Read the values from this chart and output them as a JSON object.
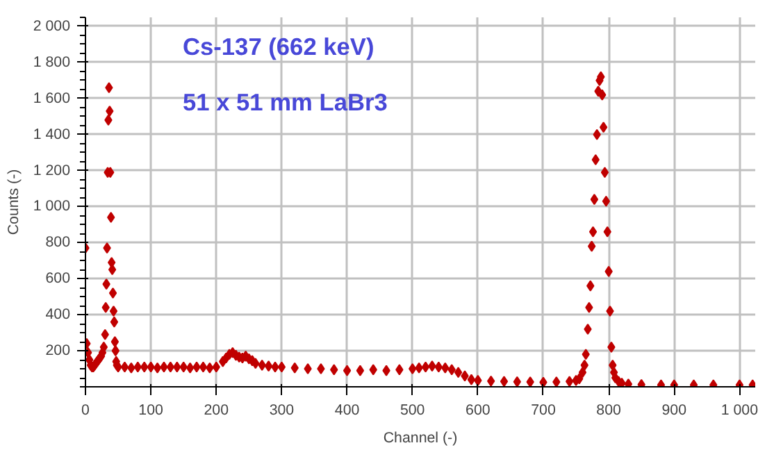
{
  "chart_data": {
    "type": "scatter",
    "xlabel": "Channel (-)",
    "ylabel": "Counts (-)",
    "annotations": [
      "Cs-137 (662 keV)",
      "51 x 51 mm LaBr3"
    ],
    "x": [
      0,
      2,
      4,
      6,
      8,
      10,
      12,
      14,
      16,
      18,
      20,
      22,
      24,
      26,
      28,
      30,
      31,
      32,
      33,
      34,
      35,
      36,
      37,
      38,
      39,
      40,
      41,
      42,
      43,
      44,
      45,
      46,
      47,
      48,
      50,
      60,
      70,
      80,
      90,
      100,
      110,
      120,
      130,
      140,
      150,
      160,
      170,
      180,
      190,
      200,
      210,
      215,
      220,
      225,
      230,
      235,
      240,
      245,
      250,
      255,
      260,
      270,
      280,
      290,
      300,
      320,
      340,
      360,
      380,
      400,
      420,
      440,
      460,
      480,
      500,
      510,
      520,
      530,
      540,
      550,
      560,
      570,
      580,
      590,
      600,
      620,
      640,
      660,
      680,
      700,
      720,
      740,
      750,
      755,
      760,
      763,
      765,
      768,
      770,
      772,
      774,
      776,
      778,
      780,
      782,
      784,
      786,
      788,
      790,
      792,
      794,
      796,
      798,
      800,
      802,
      804,
      806,
      808,
      810,
      815,
      820,
      830,
      850,
      880,
      900,
      930,
      960,
      1000,
      1020
    ],
    "values": [
      770,
      240,
      190,
      150,
      120,
      110,
      110,
      120,
      130,
      140,
      150,
      160,
      170,
      190,
      220,
      290,
      440,
      570,
      770,
      1190,
      1480,
      1660,
      1530,
      1190,
      940,
      690,
      650,
      520,
      420,
      360,
      250,
      200,
      140,
      120,
      110,
      110,
      105,
      110,
      110,
      110,
      105,
      110,
      110,
      110,
      110,
      105,
      110,
      110,
      105,
      110,
      140,
      160,
      180,
      190,
      175,
      165,
      160,
      170,
      155,
      145,
      130,
      120,
      115,
      110,
      110,
      105,
      100,
      100,
      95,
      90,
      90,
      95,
      90,
      95,
      100,
      105,
      110,
      115,
      110,
      105,
      95,
      80,
      60,
      40,
      35,
      32,
      30,
      28,
      27,
      25,
      27,
      30,
      35,
      45,
      80,
      120,
      180,
      320,
      440,
      560,
      780,
      860,
      1040,
      1260,
      1400,
      1640,
      1700,
      1720,
      1620,
      1440,
      1190,
      1030,
      860,
      640,
      420,
      220,
      120,
      80,
      50,
      30,
      20,
      15,
      12,
      10,
      10,
      10,
      10,
      10,
      10
    ],
    "xlim": [
      0,
      1024
    ],
    "ylim": [
      0,
      2050
    ],
    "xticks": [
      0,
      100,
      200,
      300,
      400,
      500,
      600,
      700,
      800,
      900,
      {
        "value": 1000,
        "label": "1 000"
      }
    ],
    "yticks": [
      200,
      400,
      600,
      800,
      {
        "value": 1000,
        "label": "1 000"
      },
      {
        "value": 1200,
        "label": "1 200"
      },
      {
        "value": 1400,
        "label": "1 400"
      },
      {
        "value": 1600,
        "label": "1 600"
      },
      {
        "value": 1800,
        "label": "1 800"
      },
      {
        "value": 2000,
        "label": "2 000"
      }
    ],
    "color": "#c00000",
    "marker": "diamond",
    "grid": true
  }
}
